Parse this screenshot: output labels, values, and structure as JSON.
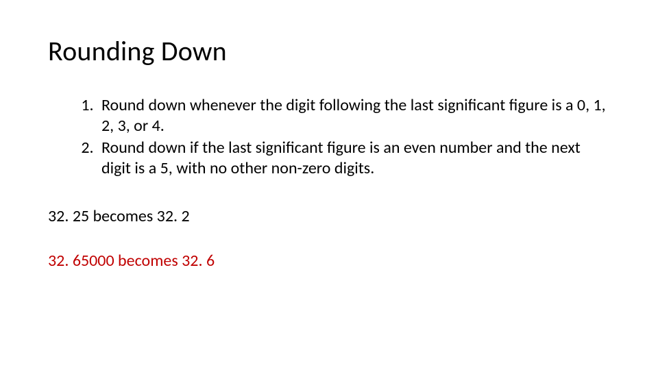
{
  "slide": {
    "title": "Rounding Down",
    "rules": [
      "Round down whenever the digit following the last significant figure is a 0, 1, 2, 3, or 4.",
      "Round down if the last significant figure is an even number and the next digit is a 5, with no other non-zero digits."
    ],
    "examples": [
      {
        "text": "32. 25 becomes 32. 2",
        "color": "#000000"
      },
      {
        "text": "32. 65000 becomes 32. 6",
        "color": "#c00000"
      }
    ],
    "style": {
      "background_color": "#ffffff",
      "title_fontsize": 40,
      "body_fontsize": 24,
      "font_family": "Calibri",
      "text_color": "#000000",
      "accent_color": "#c00000"
    }
  }
}
